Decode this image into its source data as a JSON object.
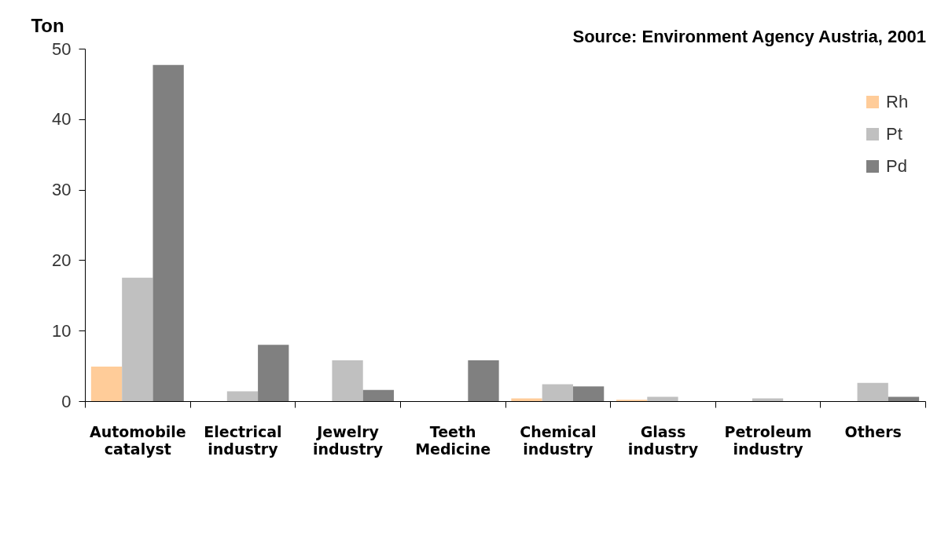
{
  "chart_data": {
    "type": "bar",
    "ylabel": "Ton",
    "annotations": [
      "Source: Environment Agency Austria, 2001"
    ],
    "categories": [
      "Automobile catalyst",
      "Electrical industry",
      "Jewelry industry",
      "Teeth Medicine",
      "Chemical industry",
      "Glass industry",
      "Petroleum industry",
      "Others"
    ],
    "series": [
      {
        "name": "Rh",
        "color": "#ffcc99",
        "values": [
          4.9,
          null,
          null,
          null,
          0.4,
          0.2,
          null,
          null
        ]
      },
      {
        "name": "Pt",
        "color": "#c0c0c0",
        "values": [
          17.5,
          1.4,
          5.8,
          null,
          2.4,
          0.6,
          0.4,
          2.6
        ]
      },
      {
        "name": "Pd",
        "color": "#808080",
        "values": [
          47.7,
          8.0,
          1.6,
          5.8,
          2.1,
          null,
          null,
          0.6
        ]
      }
    ],
    "ylim": [
      0,
      50
    ],
    "yticks": [
      0,
      10,
      20,
      30,
      40,
      50
    ],
    "legend": "top right"
  }
}
